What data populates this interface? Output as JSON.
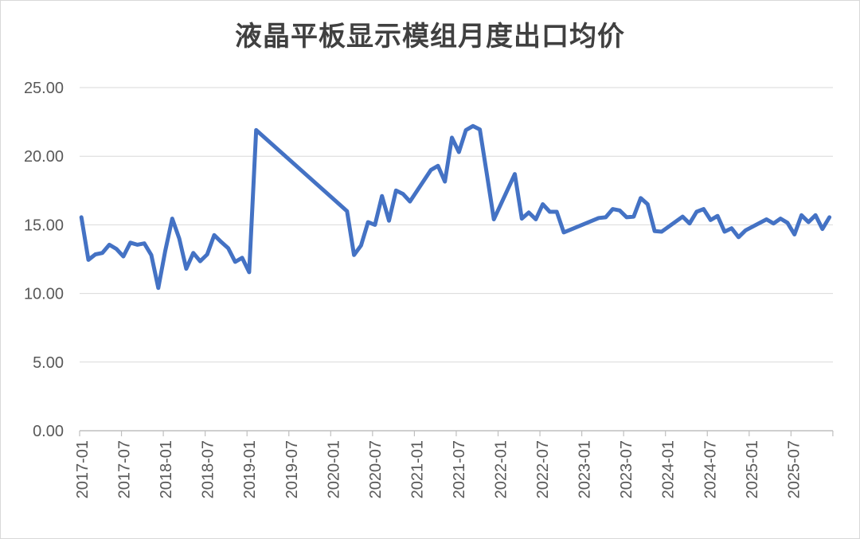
{
  "chart_data": {
    "type": "line",
    "title": "液晶平板显示模组月度出口均价",
    "xlabel": "",
    "ylabel": "",
    "ylim": [
      0,
      25
    ],
    "yticks": [
      "0.00",
      "5.00",
      "10.00",
      "15.00",
      "20.00",
      "25.00"
    ],
    "xticks": [
      "2017-01",
      "2017-07",
      "2018-01",
      "2018-07",
      "2019-01",
      "2019-07",
      "2020-01",
      "2020-07",
      "2021-01",
      "2021-07",
      "2022-01",
      "2022-07",
      "2023-01",
      "2023-07",
      "2024-01",
      "2024-07",
      "2025-01",
      "2025-07"
    ],
    "grid": true,
    "legend": "none",
    "series_color": "#4472c4",
    "x": [
      "2017-01",
      "2017-02",
      "2017-03",
      "2017-04",
      "2017-05",
      "2017-06",
      "2017-07",
      "2017-08",
      "2017-09",
      "2017-10",
      "2017-11",
      "2017-12",
      "2018-01",
      "2018-02",
      "2018-03",
      "2018-04",
      "2018-05",
      "2018-06",
      "2018-07",
      "2018-08",
      "2018-09",
      "2018-10",
      "2018-11",
      "2018-12",
      "2019-01",
      "2019-02",
      "2020-03",
      "2020-04",
      "2020-05",
      "2020-06",
      "2020-07",
      "2020-08",
      "2020-09",
      "2020-10",
      "2020-11",
      "2020-12",
      "2021-03",
      "2021-04",
      "2021-05",
      "2021-06",
      "2021-07",
      "2021-08",
      "2021-09",
      "2021-10",
      "2021-11",
      "2021-12",
      "2022-03",
      "2022-04",
      "2022-05",
      "2022-06",
      "2022-07",
      "2022-08",
      "2022-09",
      "2022-10",
      "2023-03",
      "2023-04",
      "2023-05",
      "2023-06",
      "2023-07",
      "2023-08",
      "2023-09",
      "2023-10",
      "2023-11",
      "2023-12",
      "2024-03",
      "2024-04",
      "2024-05",
      "2024-06",
      "2024-07",
      "2024-08",
      "2024-09",
      "2024-10",
      "2024-11",
      "2024-12",
      "2025-03",
      "2025-04",
      "2025-05",
      "2025-06",
      "2025-07",
      "2025-08",
      "2025-09",
      "2025-10",
      "2025-11",
      "2025-12"
    ],
    "values": [
      15.55,
      12.45,
      12.85,
      12.95,
      13.55,
      13.25,
      12.7,
      13.7,
      13.55,
      13.65,
      12.8,
      10.4,
      13.1,
      15.45,
      14.0,
      11.8,
      12.95,
      12.35,
      12.85,
      14.25,
      13.75,
      13.3,
      12.3,
      12.6,
      11.55,
      21.9,
      16.0,
      12.8,
      13.5,
      15.2,
      15.0,
      17.1,
      15.3,
      17.5,
      17.25,
      16.7,
      19.0,
      19.3,
      18.15,
      21.35,
      20.3,
      21.9,
      22.2,
      21.95,
      18.7,
      15.4,
      18.7,
      15.45,
      15.9,
      15.4,
      16.5,
      15.95,
      15.95,
      14.45,
      15.5,
      15.55,
      16.15,
      16.05,
      15.55,
      15.6,
      16.95,
      16.5,
      14.55,
      14.5,
      15.6,
      15.1,
      15.95,
      16.15,
      15.35,
      15.65,
      14.5,
      14.75,
      14.1,
      14.6,
      15.4,
      15.1,
      15.45,
      15.15,
      14.3,
      15.7,
      15.2,
      15.7,
      14.7,
      15.55
    ]
  }
}
